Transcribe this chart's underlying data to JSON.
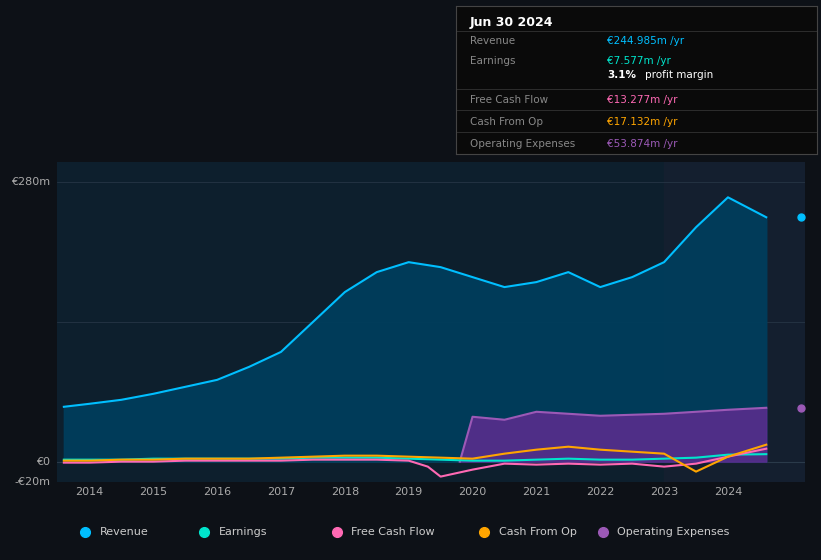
{
  "bg_color": "#0d1117",
  "plot_bg_color": "#0d1f2d",
  "title_box": {
    "date": "Jun 30 2024",
    "rows": [
      {
        "label": "Revenue",
        "value": "€244.985m /yr",
        "value_color": "#00bfff"
      },
      {
        "label": "Earnings",
        "value": "€7.577m /yr",
        "value_color": "#00e5cc"
      },
      {
        "label": "",
        "value": "3.1% profit margin",
        "value_color": "#ffffff"
      },
      {
        "label": "Free Cash Flow",
        "value": "€13.277m /yr",
        "value_color": "#ff69b4"
      },
      {
        "label": "Cash From Op",
        "value": "€17.132m /yr",
        "value_color": "#ffa500"
      },
      {
        "label": "Operating Expenses",
        "value": "€53.874m /yr",
        "value_color": "#9b59b6"
      }
    ]
  },
  "ylim": [
    -20,
    300
  ],
  "xlim": [
    2013.5,
    2025.2
  ],
  "xticks": [
    2014,
    2015,
    2016,
    2017,
    2018,
    2019,
    2020,
    2021,
    2022,
    2023,
    2024
  ],
  "revenue_color": "#00bfff",
  "revenue_fill_color": "#003d5c",
  "earnings_color": "#00e5cc",
  "fcf_color": "#ff69b4",
  "cashop_color": "#ffa500",
  "opex_color": "#9b59b6",
  "opex_fill_color": "#5b2d8e",
  "revenue": {
    "x": [
      2013.6,
      2014.0,
      2014.5,
      2015.0,
      2015.5,
      2016.0,
      2016.5,
      2017.0,
      2017.5,
      2018.0,
      2018.5,
      2019.0,
      2019.5,
      2020.0,
      2020.5,
      2021.0,
      2021.5,
      2022.0,
      2022.5,
      2023.0,
      2023.5,
      2024.0,
      2024.6
    ],
    "y": [
      55,
      58,
      62,
      68,
      75,
      82,
      95,
      110,
      140,
      170,
      190,
      200,
      195,
      185,
      175,
      180,
      190,
      175,
      185,
      200,
      235,
      265,
      245
    ]
  },
  "earnings": {
    "x": [
      2013.6,
      2014.0,
      2014.5,
      2015.0,
      2015.5,
      2016.0,
      2016.5,
      2017.0,
      2017.5,
      2018.0,
      2018.5,
      2019.0,
      2019.5,
      2020.0,
      2020.5,
      2021.0,
      2021.5,
      2022.0,
      2022.5,
      2023.0,
      2023.5,
      2024.0,
      2024.6
    ],
    "y": [
      2,
      2,
      2,
      3,
      3,
      3,
      3,
      3,
      4,
      4,
      4,
      3,
      2,
      1,
      1,
      2,
      3,
      2,
      2,
      3,
      4,
      7,
      7.5
    ]
  },
  "fcf": {
    "x": [
      2013.6,
      2014.0,
      2014.5,
      2015.0,
      2015.5,
      2016.0,
      2016.5,
      2017.0,
      2017.5,
      2018.0,
      2018.5,
      2019.0,
      2019.3,
      2019.5,
      2020.0,
      2020.5,
      2021.0,
      2021.5,
      2022.0,
      2022.5,
      2023.0,
      2023.5,
      2024.0,
      2024.6
    ],
    "y": [
      -1,
      -1,
      0,
      0,
      1,
      1,
      1,
      1,
      2,
      2,
      2,
      1,
      -5,
      -15,
      -8,
      -2,
      -3,
      -2,
      -3,
      -2,
      -5,
      -2,
      5,
      13
    ]
  },
  "cashop": {
    "x": [
      2013.6,
      2014.0,
      2014.5,
      2015.0,
      2015.5,
      2016.0,
      2016.5,
      2017.0,
      2017.5,
      2018.0,
      2018.5,
      2019.0,
      2019.5,
      2020.0,
      2020.5,
      2021.0,
      2021.5,
      2022.0,
      2022.5,
      2023.0,
      2023.5,
      2024.0,
      2024.6
    ],
    "y": [
      1,
      1,
      2,
      2,
      3,
      3,
      3,
      4,
      5,
      6,
      6,
      5,
      4,
      3,
      8,
      12,
      15,
      12,
      10,
      8,
      -10,
      5,
      17
    ]
  },
  "opex": {
    "x": [
      2019.8,
      2020.0,
      2020.5,
      2021.0,
      2021.5,
      2022.0,
      2022.5,
      2023.0,
      2023.5,
      2024.0,
      2024.6
    ],
    "y": [
      0,
      45,
      42,
      50,
      48,
      46,
      47,
      48,
      50,
      52,
      54
    ]
  },
  "highlight_x_start": 2023.0,
  "legend_items": [
    {
      "label": "Revenue",
      "color": "#00bfff"
    },
    {
      "label": "Earnings",
      "color": "#00e5cc"
    },
    {
      "label": "Free Cash Flow",
      "color": "#ff69b4"
    },
    {
      "label": "Cash From Op",
      "color": "#ffa500"
    },
    {
      "label": "Operating Expenses",
      "color": "#9b59b6"
    }
  ]
}
